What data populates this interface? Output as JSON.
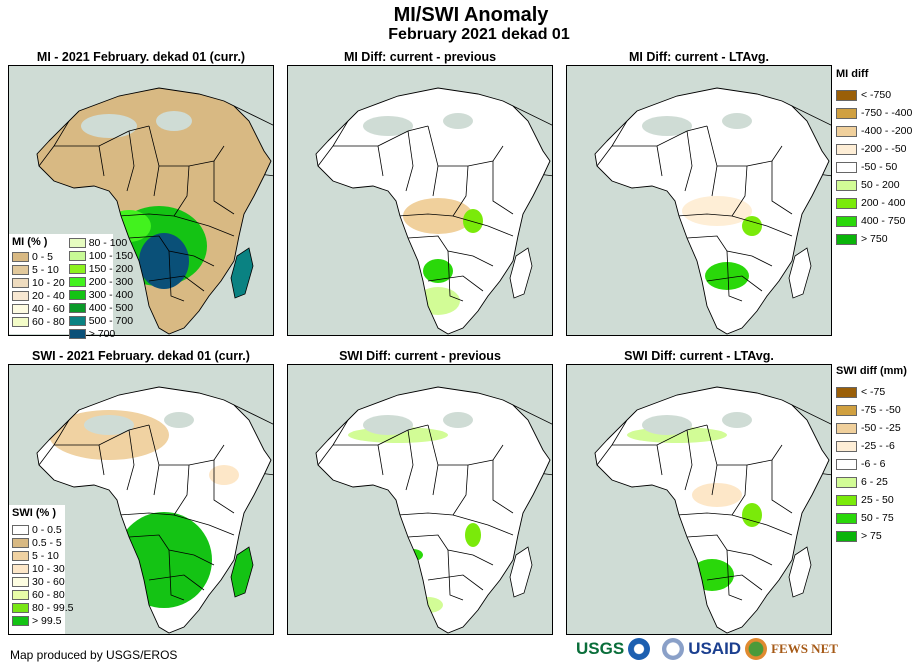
{
  "header": {
    "title": "MI/SWI Anomaly",
    "subtitle": "February 2021 dekad 01"
  },
  "panels": [
    {
      "id": "mi-current",
      "title": "MI - 2021 February. dekad 01 (curr.)"
    },
    {
      "id": "mi-diff-prev",
      "title": "MI Diff: current - previous"
    },
    {
      "id": "mi-diff-ltavg",
      "title": "MI Diff: current - LTAvg."
    },
    {
      "id": "swi-current",
      "title": "SWI - 2021 February. dekad 01 (curr.)"
    },
    {
      "id": "swi-diff-prev",
      "title": "SWI Diff: current - previous"
    },
    {
      "id": "swi-diff-ltavg",
      "title": "SWI Diff: current - LTAvg."
    }
  ],
  "colors": {
    "sea": "#cfdcd5",
    "land_nodata": "#ffffff",
    "border": "#000000"
  },
  "legends": {
    "mi_percent": {
      "title": "MI (% )",
      "items": [
        {
          "label": "0 - 5",
          "color": "#d8b983"
        },
        {
          "label": "5 - 10",
          "color": "#e2c99c"
        },
        {
          "label": "10 - 20",
          "color": "#efdcbf"
        },
        {
          "label": "20 - 40",
          "color": "#f8e8d2"
        },
        {
          "label": "40 - 60",
          "color": "#fdfbe1"
        },
        {
          "label": "60 - 80",
          "color": "#f3fcc8"
        },
        {
          "label": "80 - 100",
          "color": "#e6fcc0"
        },
        {
          "label": "100 - 150",
          "color": "#c8fa96"
        },
        {
          "label": "150 - 200",
          "color": "#8cf21e"
        },
        {
          "label": "200 - 300",
          "color": "#42f21e"
        },
        {
          "label": "300 - 400",
          "color": "#14c314"
        },
        {
          "label": "400 - 500",
          "color": "#0a9a28"
        },
        {
          "label": "500 - 700",
          "color": "#0a8282"
        },
        {
          "label": "> 700",
          "color": "#0a5078"
        }
      ]
    },
    "swi_percent": {
      "title": "SWI (% )",
      "items": [
        {
          "label": "0 - 0.5",
          "color": "#ffffff"
        },
        {
          "label": "0.5 - 5",
          "color": "#d8b983"
        },
        {
          "label": "5 - 10",
          "color": "#f0d2a2"
        },
        {
          "label": "10 - 30",
          "color": "#fde7c8"
        },
        {
          "label": "30 - 60",
          "color": "#fdfde1"
        },
        {
          "label": "60 - 80",
          "color": "#e8fca8"
        },
        {
          "label": "80 - 99.5",
          "color": "#78e614"
        },
        {
          "label": "> 99.5",
          "color": "#14c314"
        }
      ]
    },
    "mi_diff": {
      "title": "MI diff",
      "items": [
        {
          "label": "< -750",
          "color": "#9a5f08"
        },
        {
          "label": "-750 - -400",
          "color": "#d0a040"
        },
        {
          "label": "-400 - -200",
          "color": "#f0d09c"
        },
        {
          "label": "-200 - -50",
          "color": "#feeed6"
        },
        {
          "label": "-50 - 50",
          "color": "#ffffff"
        },
        {
          "label": "50 - 200",
          "color": "#d2fc96"
        },
        {
          "label": "200 - 400",
          "color": "#7aea0a"
        },
        {
          "label": "400 - 750",
          "color": "#2ad80a"
        },
        {
          "label": "> 750",
          "color": "#0ab40a"
        }
      ]
    },
    "swi_diff": {
      "title": "SWI diff (mm)",
      "items": [
        {
          "label": "< -75",
          "color": "#9a5f08"
        },
        {
          "label": "-75 - -50",
          "color": "#d0a040"
        },
        {
          "label": "-50 - -25",
          "color": "#f0d09c"
        },
        {
          "label": "-25 - -6",
          "color": "#feeed6"
        },
        {
          "label": "-6 - 6",
          "color": "#ffffff"
        },
        {
          "label": "6 - 25",
          "color": "#d2fc96"
        },
        {
          "label": "25 - 50",
          "color": "#7aea0a"
        },
        {
          "label": "50 - 75",
          "color": "#2ad80a"
        },
        {
          "label": "> 75",
          "color": "#0ab40a"
        }
      ]
    }
  },
  "footer": {
    "credit": "Map produced by USGS/EROS",
    "logos": [
      "USGS",
      "NOAA",
      "USAID",
      "FEWS NET"
    ]
  }
}
